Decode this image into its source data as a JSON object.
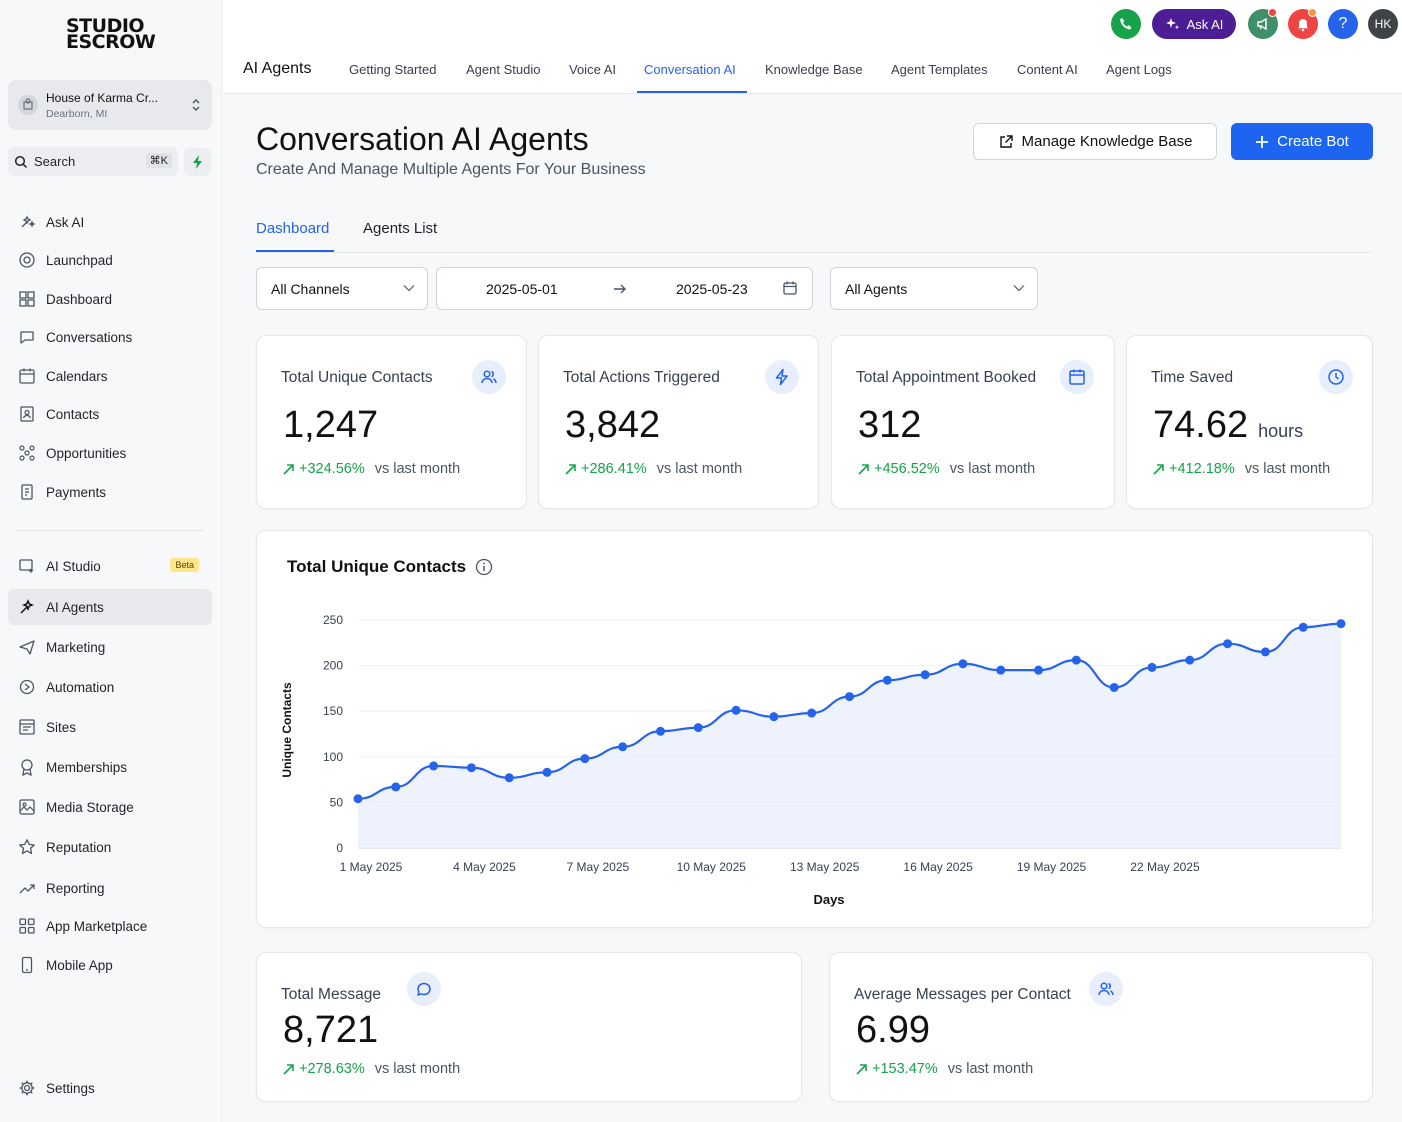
{
  "sidebar": {
    "logo_line1": "STUDIO",
    "logo_line2": "ESCROW",
    "account_name": "House of Karma Cr...",
    "account_location": "Dearborn, MI",
    "search_label": "Search",
    "search_shortcut": "⌘K",
    "items": [
      {
        "label": "Ask AI",
        "icon": "ask-ai-icon"
      },
      {
        "label": "Launchpad",
        "icon": "launchpad-icon"
      },
      {
        "label": "Dashboard",
        "icon": "dashboard-icon"
      },
      {
        "label": "Conversations",
        "icon": "chat-icon"
      },
      {
        "label": "Calendars",
        "icon": "calendar-icon"
      },
      {
        "label": "Contacts",
        "icon": "contacts-icon"
      },
      {
        "label": "Opportunities",
        "icon": "opportunities-icon"
      },
      {
        "label": "Payments",
        "icon": "payments-icon"
      }
    ],
    "items2": [
      {
        "label": "AI Studio",
        "icon": "ai-studio-icon",
        "badge": "Beta"
      },
      {
        "label": "AI Agents",
        "icon": "ai-agents-icon"
      },
      {
        "label": "Marketing",
        "icon": "marketing-icon"
      },
      {
        "label": "Automation",
        "icon": "automation-icon"
      },
      {
        "label": "Sites",
        "icon": "sites-icon"
      },
      {
        "label": "Memberships",
        "icon": "memberships-icon"
      },
      {
        "label": "Media Storage",
        "icon": "media-storage-icon"
      },
      {
        "label": "Reputation",
        "icon": "star-icon"
      },
      {
        "label": "Reporting",
        "icon": "reporting-icon"
      },
      {
        "label": "App Marketplace",
        "icon": "app-marketplace-icon"
      },
      {
        "label": "Mobile App",
        "icon": "mobile-icon"
      }
    ],
    "settings": "Settings"
  },
  "topbar": {
    "title": "AI Agents",
    "tabs": [
      "Getting Started",
      "Agent Studio",
      "Voice AI",
      "Conversation AI",
      "Knowledge Base",
      "Agent Templates",
      "Content AI",
      "Agent Logs"
    ],
    "active_tab": "Conversation AI",
    "ask_ai": "Ask AI",
    "avatar_initials": "HK",
    "colors": {
      "phone": "#16a34a",
      "ask_ai": "#4c1d95",
      "announce": "#3f8f6a",
      "bell": "#ef4444",
      "help": "#2563eb",
      "avatar": "#3f4247"
    }
  },
  "page": {
    "title": "Conversation AI Agents",
    "subtitle": "Create And Manage Multiple Agents For Your Business",
    "manage_kb": "Manage Knowledge Base",
    "create_bot": "Create Bot",
    "subtabs": [
      "Dashboard",
      "Agents List"
    ],
    "filters": {
      "channel": "All Channels",
      "date_from": "2025-05-01",
      "date_to": "2025-05-23",
      "agents": "All Agents"
    }
  },
  "stats": [
    {
      "label": "Total Unique Contacts",
      "value": "1,247",
      "unit": "",
      "change": "+324.56%",
      "vs": "vs last month",
      "icon": "users-icon"
    },
    {
      "label": "Total Actions Triggered",
      "value": "3,842",
      "unit": "",
      "change": "+286.41%",
      "vs": "vs last month",
      "icon": "bolt-icon"
    },
    {
      "label": "Total Appointment Booked",
      "value": "312",
      "unit": "",
      "change": "+456.52%",
      "vs": "vs last month",
      "icon": "calendar-icon"
    },
    {
      "label": "Time Saved",
      "value": "74.62",
      "unit": "hours",
      "change": "+412.18%",
      "vs": "vs last month",
      "icon": "clock-icon"
    }
  ],
  "stats2": [
    {
      "label": "Total Message",
      "value": "8,721",
      "change": "+278.63%",
      "vs": "vs last month",
      "icon": "message-icon"
    },
    {
      "label": "Average Messages per Contact",
      "value": "6.99",
      "change": "+153.47%",
      "vs": "vs last month",
      "icon": "users-icon"
    }
  ],
  "chart_data": {
    "type": "area",
    "title": "Total Unique Contacts",
    "xlabel": "Days",
    "ylabel": "Unique Contacts",
    "x": [
      "1 May 2025",
      "2 May 2025",
      "3 May 2025",
      "4 May 2025",
      "5 May 2025",
      "6 May 2025",
      "7 May 2025",
      "8 May 2025",
      "9 May 2025",
      "10 May 2025",
      "11 May 2025",
      "12 May 2025",
      "13 May 2025",
      "14 May 2025",
      "15 May 2025",
      "16 May 2025",
      "17 May 2025",
      "18 May 2025",
      "19 May 2025",
      "20 May 2025",
      "21 May 2025",
      "22 May 2025",
      "23 May 2025",
      "24 May 2025",
      "25 May 2025",
      "26 May 2025",
      "27 May 2025"
    ],
    "xticks": [
      "1 May 2025",
      "4 May 2025",
      "7 May 2025",
      "10 May 2025",
      "13 May 2025",
      "16 May 2025",
      "19 May 2025",
      "22 May 2025"
    ],
    "series": [
      {
        "values": [
          54,
          67,
          90,
          88,
          77,
          83,
          98,
          111,
          128,
          132,
          151,
          144,
          148,
          166,
          184,
          190,
          202,
          195,
          195,
          206,
          176,
          198,
          206,
          224,
          215,
          242,
          246
        ]
      }
    ],
    "ylim": [
      0,
      250
    ],
    "yticks": [
      0,
      50,
      100,
      150,
      200,
      250
    ],
    "color": "#2563eb",
    "grid": true,
    "legend": "none"
  }
}
